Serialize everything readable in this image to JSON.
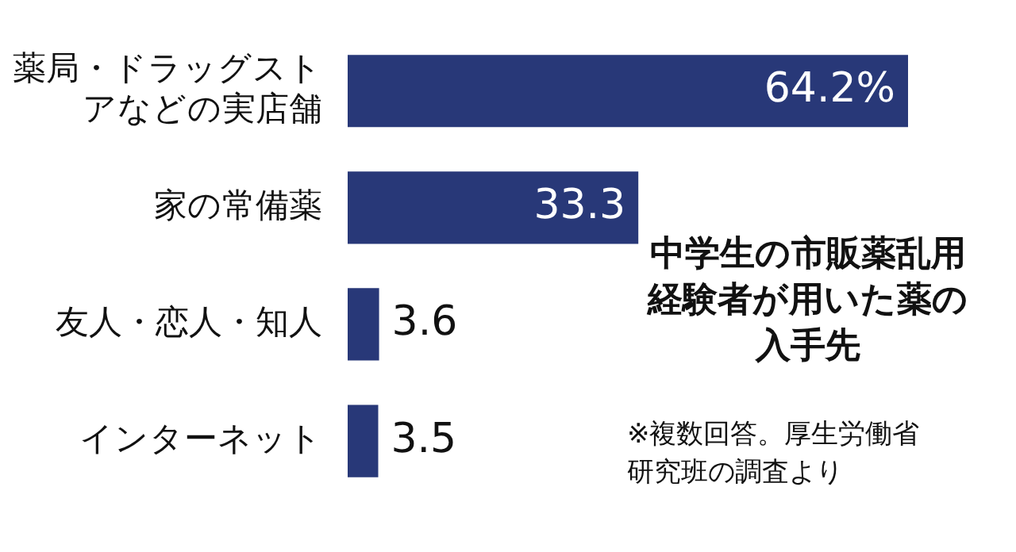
{
  "chart_data": {
    "type": "bar",
    "orientation": "horizontal",
    "tick_labels": "y",
    "title": "中学生の市販薬乱用経験者が用いた薬の入手先",
    "categories": [
      "薬局・ドラッグストアなどの実店舗",
      "家の常備薬",
      "友人・恋人・知人",
      "インターネット"
    ],
    "values": [
      64.2,
      33.3,
      3.6,
      3.5
    ],
    "value_labels": [
      "64.2%",
      "33.3",
      "3.6",
      "3.5"
    ],
    "color": "#283878",
    "annotations": [
      "※複数回答。厚生労働省研究班の調査より"
    ]
  }
}
